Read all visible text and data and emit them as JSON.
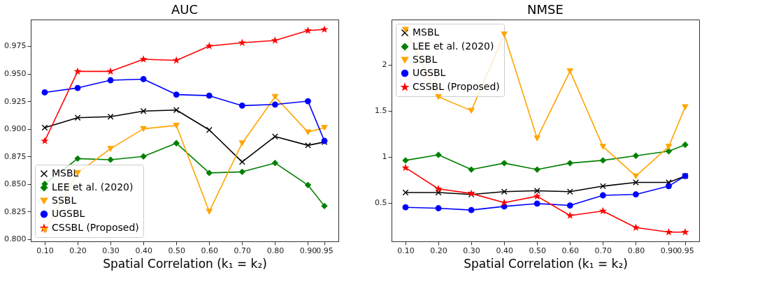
{
  "chart_data": [
    {
      "type": "line",
      "title": "AUC",
      "xlabel": "Spatial Correlation (k₁ = k₂)",
      "legend": "bottom left",
      "x": [
        0.1,
        0.2,
        0.3,
        0.4,
        0.5,
        0.6,
        0.7,
        0.8,
        0.9,
        0.95
      ],
      "xlim": [
        0.0575,
        0.9925
      ],
      "xticks": [
        {
          "value": 0.1,
          "label": "0.10"
        },
        {
          "value": 0.2,
          "label": "0.20"
        },
        {
          "value": 0.3,
          "label": "0.30"
        },
        {
          "value": 0.4,
          "label": "0.40"
        },
        {
          "value": 0.5,
          "label": "0.50"
        },
        {
          "value": 0.6,
          "label": "0.60"
        },
        {
          "value": 0.7,
          "label": "0.70"
        },
        {
          "value": 0.8,
          "label": "0.80"
        },
        {
          "value": 0.9,
          "label": "0.90"
        },
        {
          "value": 0.95,
          "label": "0.95"
        }
      ],
      "ylim": [
        0.798,
        0.999
      ],
      "yticks": [
        {
          "value": 0.8,
          "label": "0.800"
        },
        {
          "value": 0.825,
          "label": "0.825"
        },
        {
          "value": 0.85,
          "label": "0.850"
        },
        {
          "value": 0.875,
          "label": "0.875"
        },
        {
          "value": 0.9,
          "label": "0.900"
        },
        {
          "value": 0.925,
          "label": "0.925"
        },
        {
          "value": 0.95,
          "label": "0.950"
        },
        {
          "value": 0.975,
          "label": "0.975"
        }
      ],
      "series": [
        {
          "name": "MSBL",
          "color": "#000000",
          "marker": "cross",
          "values": [
            0.901,
            0.91,
            0.911,
            0.916,
            0.917,
            0.899,
            0.87,
            0.893,
            0.885,
            0.888
          ]
        },
        {
          "name": "LEE et al. (2020)",
          "color": "#008000",
          "marker": "diamond",
          "values": [
            0.85,
            0.873,
            0.872,
            0.875,
            0.887,
            0.86,
            0.861,
            0.869,
            0.849,
            0.83
          ]
        },
        {
          "name": "SSBL",
          "color": "#ffa500",
          "marker": "triangle",
          "values": [
            0.808,
            0.86,
            0.882,
            0.9,
            0.903,
            0.825,
            0.887,
            0.929,
            0.897,
            0.901
          ]
        },
        {
          "name": "UGSBL",
          "color": "#0000ff",
          "marker": "circle",
          "values": [
            0.933,
            0.937,
            0.944,
            0.945,
            0.931,
            0.93,
            0.921,
            0.922,
            0.925,
            0.889
          ]
        },
        {
          "name": "CSSBL (Proposed)",
          "color": "#ff0000",
          "marker": "star",
          "values": [
            0.889,
            0.952,
            0.952,
            0.963,
            0.962,
            0.975,
            0.978,
            0.98,
            0.989,
            0.99
          ]
        }
      ]
    },
    {
      "type": "line",
      "title": "NMSE",
      "xlabel": "Spatial Correlation (k₁ = k₂)",
      "legend": "top left",
      "x": [
        0.1,
        0.2,
        0.3,
        0.4,
        0.5,
        0.6,
        0.7,
        0.8,
        0.9,
        0.95
      ],
      "xlim": [
        0.0575,
        0.9925
      ],
      "xticks": [
        {
          "value": 0.1,
          "label": "0.10"
        },
        {
          "value": 0.2,
          "label": "0.20"
        },
        {
          "value": 0.3,
          "label": "0.30"
        },
        {
          "value": 0.4,
          "label": "0.40"
        },
        {
          "value": 0.5,
          "label": "0.50"
        },
        {
          "value": 0.6,
          "label": "0.60"
        },
        {
          "value": 0.7,
          "label": "0.70"
        },
        {
          "value": 0.8,
          "label": "0.80"
        },
        {
          "value": 0.9,
          "label": "0.90"
        },
        {
          "value": 0.95,
          "label": "0.95"
        }
      ],
      "ylim": [
        0.08,
        2.49
      ],
      "yticks": [
        0.5,
        1.0,
        1.5,
        2.0
      ],
      "series": [
        {
          "name": "MSBL",
          "color": "#000000",
          "marker": "cross",
          "values": [
            0.61,
            0.61,
            0.59,
            0.62,
            0.63,
            0.62,
            0.68,
            0.72,
            0.72,
            0.79
          ]
        },
        {
          "name": "LEE et al. (2020)",
          "color": "#008000",
          "marker": "diamond",
          "values": [
            0.96,
            1.02,
            0.86,
            0.93,
            0.86,
            0.93,
            0.96,
            1.01,
            1.06,
            1.13
          ]
        },
        {
          "name": "SSBL",
          "color": "#ffa500",
          "marker": "triangle",
          "values": [
            2.38,
            1.65,
            1.5,
            2.33,
            1.2,
            1.93,
            1.11,
            0.79,
            1.11,
            1.54
          ]
        },
        {
          "name": "UGSBL",
          "color": "#0000ff",
          "marker": "circle",
          "values": [
            0.45,
            0.44,
            0.42,
            0.46,
            0.49,
            0.47,
            0.58,
            0.59,
            0.68,
            0.79
          ]
        },
        {
          "name": "CSSBL (Proposed)",
          "color": "#ff0000",
          "marker": "star",
          "values": [
            0.88,
            0.65,
            0.6,
            0.5,
            0.57,
            0.36,
            0.41,
            0.23,
            0.18,
            0.18
          ]
        }
      ]
    }
  ]
}
